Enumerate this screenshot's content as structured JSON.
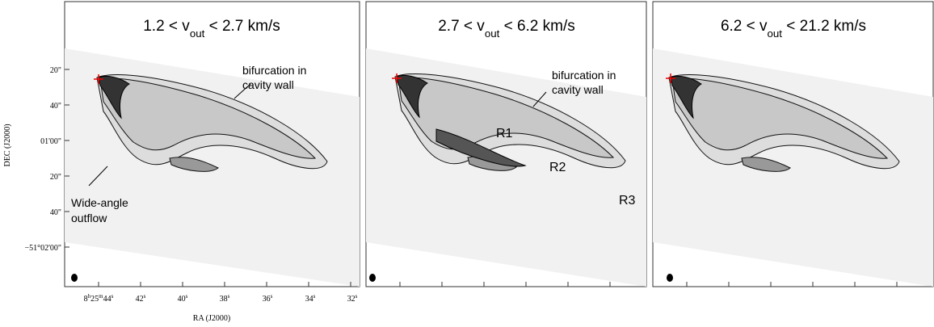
{
  "panels": [
    {
      "title": [
        {
          "text": "1.2 < v",
          "sup": false,
          "sub": false
        },
        {
          "text": "out",
          "sup": false,
          "sub": true
        },
        {
          "text": " < 2.7 km/s",
          "sup": false,
          "sub": false
        }
      ],
      "annotations": [
        "bifurcation in",
        "cavity wall",
        "Wide-angle",
        "outflow"
      ]
    },
    {
      "title": [
        {
          "text": "2.7 < v",
          "sup": false,
          "sub": false
        },
        {
          "text": "out",
          "sup": false,
          "sub": true
        },
        {
          "text": " < 6.2 km/s",
          "sup": false,
          "sub": false
        }
      ],
      "annotations": [
        "bifurcation in",
        "cavity wall",
        "R1",
        "R2",
        "R3"
      ]
    },
    {
      "title": [
        {
          "text": "6.2 < v",
          "sup": false,
          "sub": false
        },
        {
          "text": "out",
          "sup": false,
          "sub": true
        },
        {
          "text": " < 21.2 km/s",
          "sup": false,
          "sub": false
        }
      ],
      "annotations": []
    }
  ],
  "y_axis": {
    "label": "DEC (J2000)",
    "ticks": [
      "20\"",
      "40\"",
      "01'00\"",
      "20\"",
      "40\"",
      "−51°02'00\""
    ]
  },
  "x_axis": {
    "label": "RA (J2000)",
    "ticks": [
      [
        {
          "text": "8",
          "sup": false,
          "sub": false
        },
        {
          "text": "h",
          "sup": true,
          "sub": false
        },
        {
          "text": "25",
          "sup": false,
          "sub": false
        },
        {
          "text": "m",
          "sup": true,
          "sub": false
        },
        {
          "text": "44",
          "sup": false,
          "sub": false
        },
        {
          "text": "s",
          "sup": true,
          "sub": false
        }
      ],
      [
        {
          "text": "42",
          "sup": false,
          "sub": false
        },
        {
          "text": "s",
          "sup": true,
          "sub": false
        }
      ],
      [
        {
          "text": "40",
          "sup": false,
          "sub": false
        },
        {
          "text": "s",
          "sup": true,
          "sub": false
        }
      ],
      [
        {
          "text": "38",
          "sup": false,
          "sub": false
        },
        {
          "text": "s",
          "sup": true,
          "sub": false
        }
      ],
      [
        {
          "text": "36",
          "sup": false,
          "sub": false
        },
        {
          "text": "s",
          "sup": true,
          "sub": false
        }
      ],
      [
        {
          "text": "34",
          "sup": false,
          "sub": false
        },
        {
          "text": "s",
          "sup": true,
          "sub": false
        }
      ],
      [
        {
          "text": "32",
          "sup": false,
          "sub": false
        },
        {
          "text": "s",
          "sup": true,
          "sub": false
        }
      ]
    ]
  }
}
